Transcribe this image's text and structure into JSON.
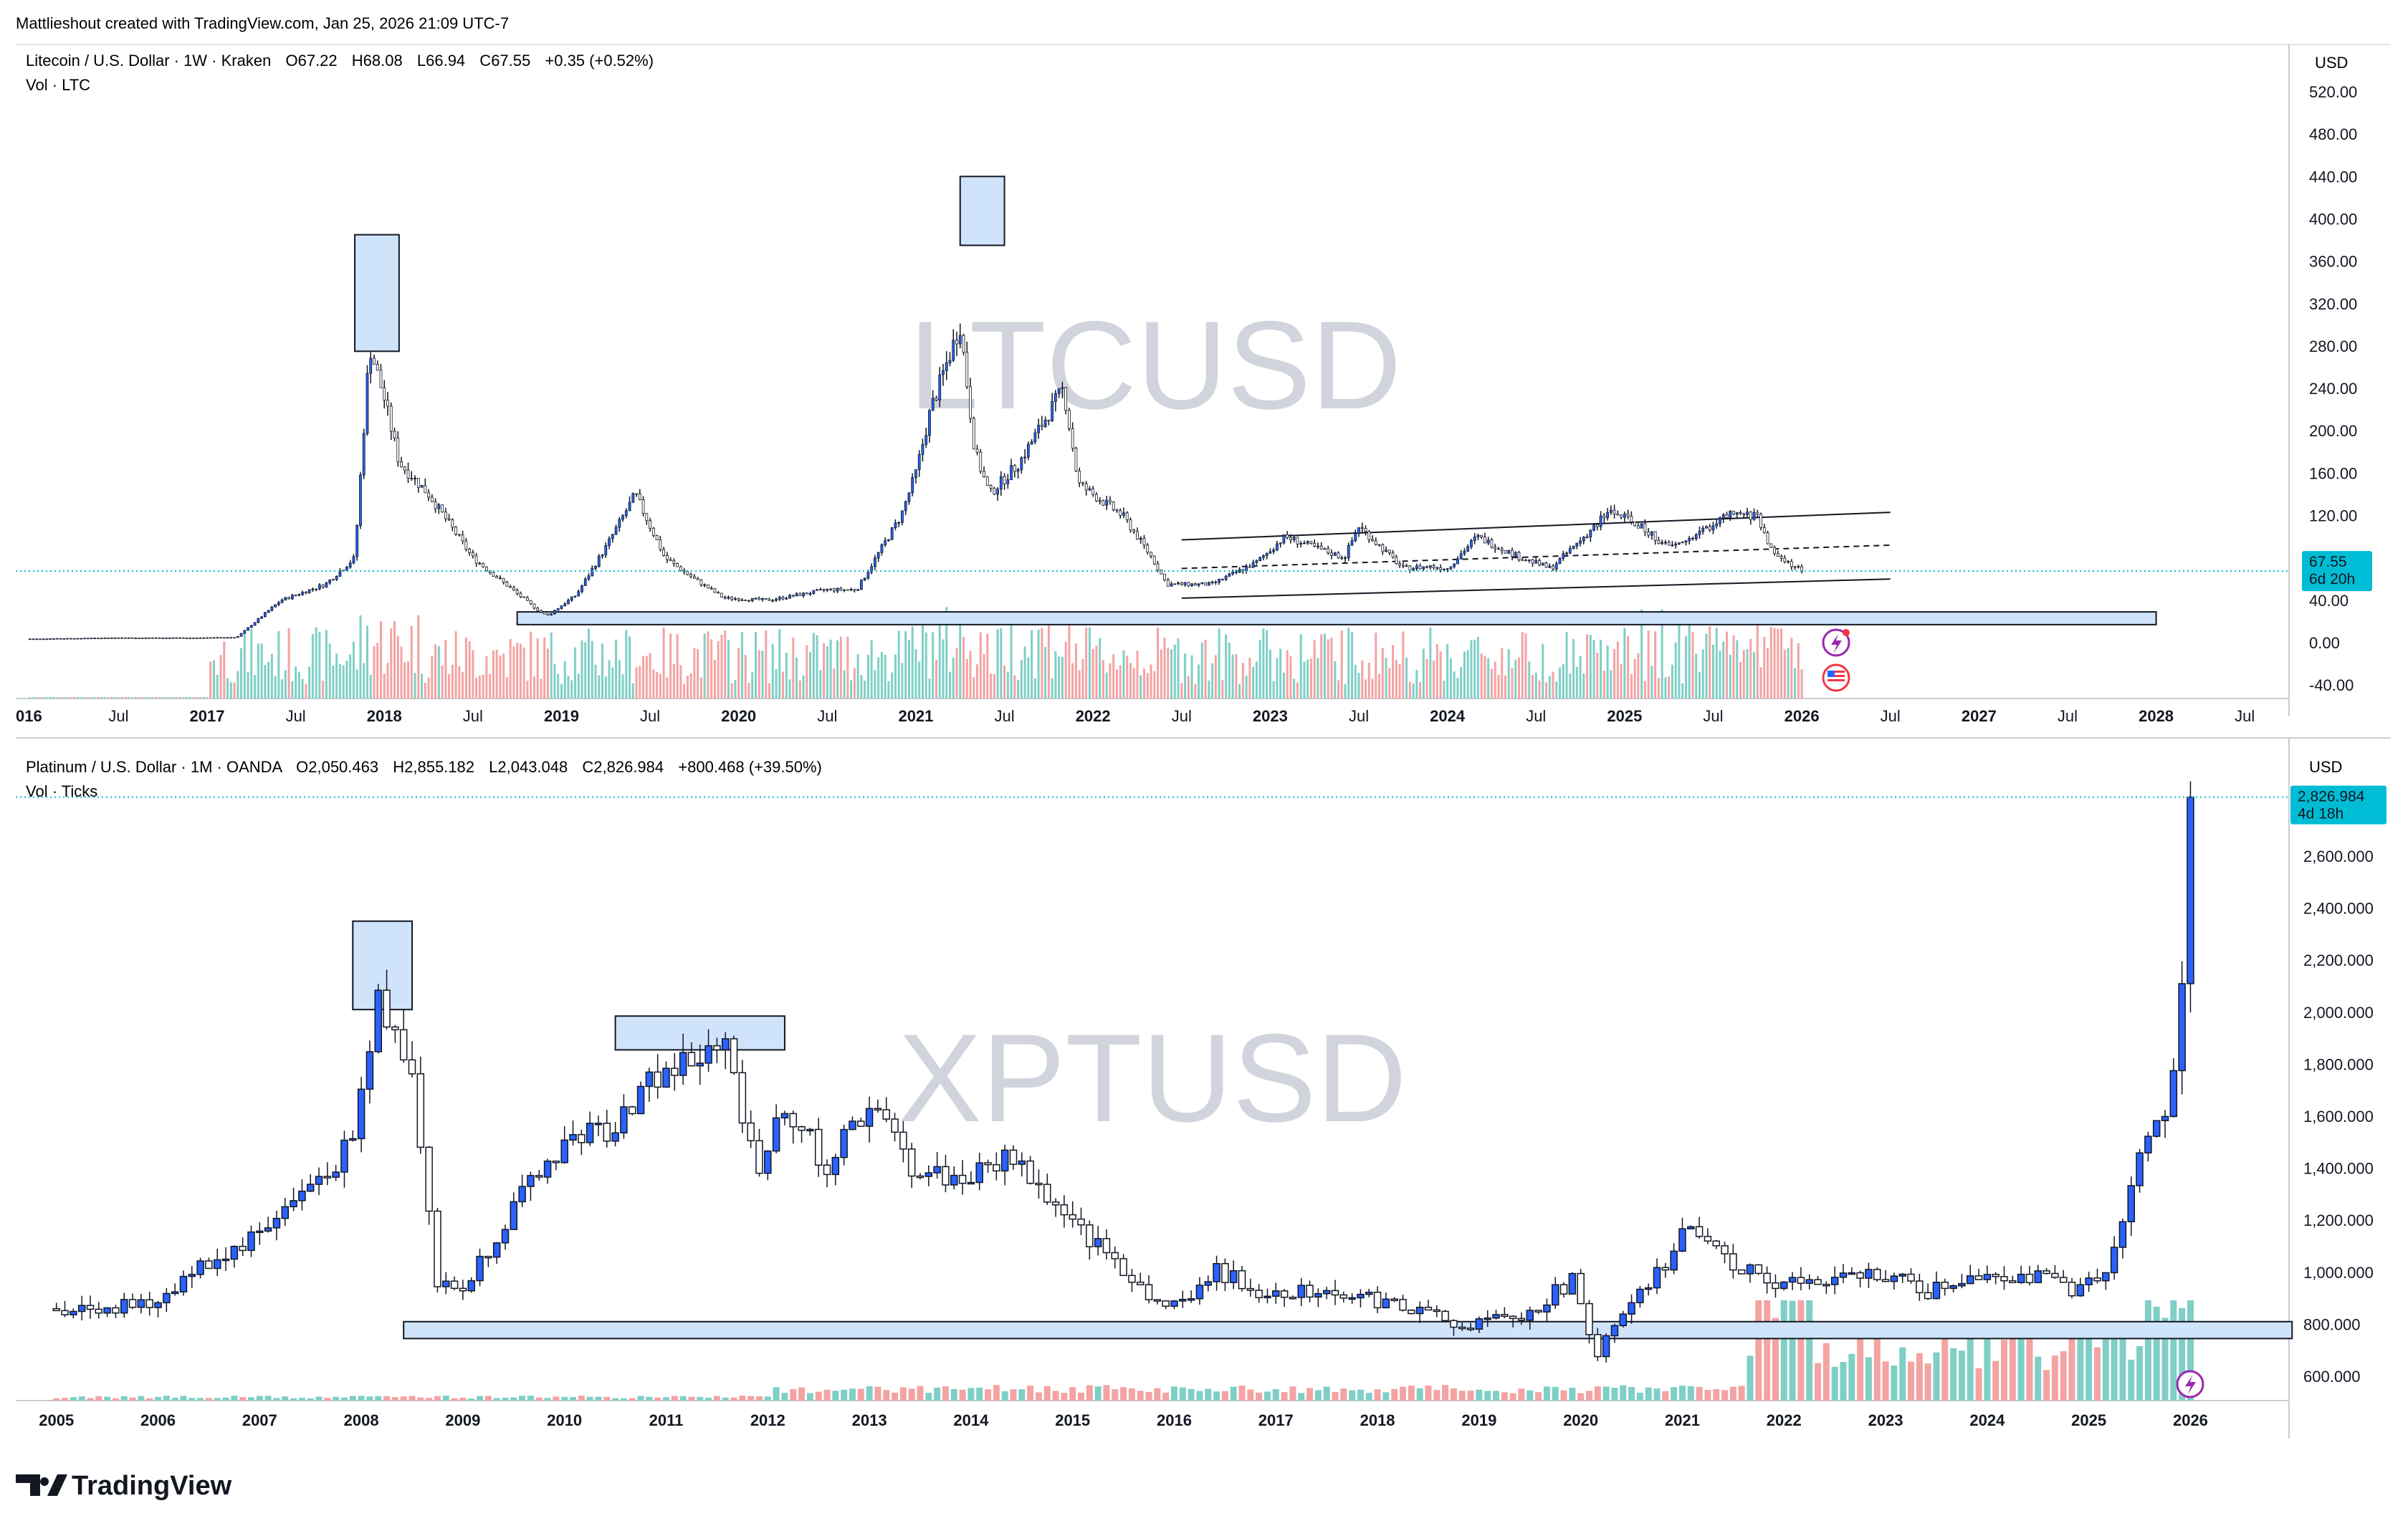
{
  "header": {
    "snapshot_text": "Mattlieshout created with TradingView.com, Jan 25, 2026 21:09 UTC-7"
  },
  "footer": {
    "logo_text": "TradingView"
  },
  "colors": {
    "up_bar": "#2962ff",
    "down_bar": "#ffffff",
    "candle_border": "#131722",
    "vol_up": "#7fcfc6",
    "vol_down": "#f4a3a3",
    "zone_fill": "#cfe3fb",
    "zone_stroke": "#131722",
    "price_tag": "#00bcd4",
    "watermark": "#d1d4dc",
    "grid_text": "#131722"
  },
  "chart_data": [
    {
      "type": "candlestick",
      "symbol_line": "Litecoin / U.S. Dollar · 1W · Kraken",
      "ohlc": {
        "o_label": "O",
        "open": "67.22",
        "h_label": "H",
        "high": "68.08",
        "l_label": "L",
        "low": "66.94",
        "c_label": "C",
        "close": "67.55",
        "change": "+0.35 (+0.52%)"
      },
      "volume_label": "Vol · LTC",
      "watermark": "LTCUSD",
      "currency": "USD",
      "y_ticks": [
        "520.00",
        "480.00",
        "440.00",
        "400.00",
        "360.00",
        "320.00",
        "280.00",
        "240.00",
        "200.00",
        "160.00",
        "120.00",
        "80.00",
        "40.00",
        "0.00",
        "-40.00"
      ],
      "y_values": [
        520,
        480,
        440,
        400,
        360,
        320,
        280,
        240,
        200,
        160,
        120,
        80,
        40,
        0,
        -40
      ],
      "x_ticks": [
        "016",
        "Jul",
        "2017",
        "Jul",
        "2018",
        "Jul",
        "2019",
        "Jul",
        "2020",
        "Jul",
        "2021",
        "Jul",
        "2022",
        "Jul",
        "2023",
        "Jul",
        "2024",
        "Jul",
        "2025",
        "Jul",
        "2026",
        "Jul",
        "2027",
        "Jul",
        "2028",
        "Jul"
      ],
      "last_price": "67.55",
      "countdown": "6d 20h",
      "series": [
        {
          "name": "LTCUSD",
          "time": [
            "2016-01",
            "2016-07",
            "2016-12",
            "2017-03",
            "2017-06",
            "2017-09",
            "2017-11",
            "2017-12",
            "2018-01",
            "2018-02",
            "2018-04",
            "2018-07",
            "2018-11",
            "2018-12",
            "2019-02",
            "2019-04",
            "2019-06",
            "2019-08",
            "2019-10",
            "2019-12",
            "2020-03",
            "2020-07",
            "2020-09",
            "2020-12",
            "2021-01",
            "2021-02",
            "2021-04",
            "2021-05",
            "2021-06",
            "2021-08",
            "2021-11",
            "2021-12",
            "2022-03",
            "2022-05",
            "2022-06",
            "2022-09",
            "2022-12",
            "2023-02",
            "2023-04",
            "2023-06",
            "2023-07",
            "2023-10",
            "2023-12",
            "2024-01",
            "2024-03",
            "2024-06",
            "2024-08",
            "2024-11",
            "2024-12",
            "2025-02",
            "2025-04",
            "2025-05",
            "2025-08",
            "2025-10",
            "2025-11",
            "2026-01"
          ],
          "close": [
            3.5,
            4.5,
            4.5,
            5,
            40,
            55,
            80,
            280,
            230,
            170,
            140,
            80,
            35,
            25,
            45,
            90,
            140,
            80,
            60,
            42,
            40,
            50,
            50,
            120,
            160,
            220,
            300,
            180,
            140,
            170,
            240,
            150,
            120,
            80,
            55,
            55,
            75,
            100,
            90,
            80,
            110,
            70,
            72,
            70,
            100,
            80,
            70,
            110,
            125,
            110,
            90,
            95,
            120,
            120,
            85,
            67.55
          ]
        },
        {
          "name": "Vol · LTC",
          "time": [
            "2017",
            "2018",
            "2019",
            "2020",
            "2021",
            "2022",
            "2023",
            "2024",
            "2025",
            "2026"
          ],
          "values": [
            null,
            null,
            null,
            null,
            null,
            null,
            null,
            null,
            null,
            null
          ]
        }
      ],
      "zones": [
        {
          "name": "top-2017",
          "x0": "2017-11",
          "x1": "2018-02",
          "y0": 275,
          "y1": 385
        },
        {
          "name": "top-2021",
          "x0": "2021-04",
          "x1": "2021-07",
          "y0": 375,
          "y1": 440
        },
        {
          "name": "support",
          "x0": "2018-10",
          "x1": "2028-01",
          "y0": 17,
          "y1": 29
        }
      ],
      "channel": {
        "upper": [
          [
            "2022-07",
            97
          ],
          [
            "2026-07",
            123
          ]
        ],
        "lower": [
          [
            "2022-07",
            42
          ],
          [
            "2026-07",
            60
          ]
        ],
        "mid_dashed": [
          [
            "2022-07",
            70
          ],
          [
            "2026-07",
            92
          ]
        ]
      }
    },
    {
      "type": "candlestick",
      "symbol_line": "Platinum / U.S. Dollar · 1M · OANDA",
      "ohlc": {
        "o_label": "O",
        "open": "2,050.463",
        "h_label": "H",
        "high": "2,855.182",
        "l_label": "L",
        "low": "2,043.048",
        "c_label": "C",
        "close": "2,826.984",
        "change": "+800.468 (+39.50%)"
      },
      "volume_label": "Vol · Ticks",
      "watermark": "XPTUSD",
      "currency": "USD",
      "y_ticks": [
        "2,600.000",
        "2,400.000",
        "2,200.000",
        "2,000.000",
        "1,800.000",
        "1,600.000",
        "1,400.000",
        "1,200.000",
        "1,000.000",
        "800.000",
        "600.000"
      ],
      "y_values": [
        2600,
        2400,
        2200,
        2000,
        1800,
        1600,
        1400,
        1200,
        1000,
        800,
        600
      ],
      "x_ticks": [
        "2005",
        "2006",
        "2007",
        "2008",
        "2009",
        "2010",
        "2011",
        "2012",
        "2013",
        "2014",
        "2015",
        "2016",
        "2017",
        "2018",
        "2019",
        "2020",
        "2021",
        "2022",
        "2023",
        "2024",
        "2025",
        "2026"
      ],
      "last_price": "2,826.984",
      "countdown": "4d 18h",
      "series": [
        {
          "name": "XPTUSD",
          "time": [
            "2005-01",
            "2005-12",
            "2006-05",
            "2006-12",
            "2007-06",
            "2007-12",
            "2008-03",
            "2008-07",
            "2008-10",
            "2009-01",
            "2009-06",
            "2010-01",
            "2010-06",
            "2010-12",
            "2011-03",
            "2011-08",
            "2011-12",
            "2012-03",
            "2012-08",
            "2013-01",
            "2013-06",
            "2013-12",
            "2014-06",
            "2014-12",
            "2015-06",
            "2015-12",
            "2016-06",
            "2016-12",
            "2017-06",
            "2017-12",
            "2018-06",
            "2018-12",
            "2019-06",
            "2019-12",
            "2020-03",
            "2020-06",
            "2020-12",
            "2021-02",
            "2021-06",
            "2021-12",
            "2022-06",
            "2022-12",
            "2023-06",
            "2023-12",
            "2024-06",
            "2024-12",
            "2025-03",
            "2025-06",
            "2025-09",
            "2025-10",
            "2025-12",
            "2026-01"
          ],
          "close": [
            860,
            870,
            1000,
            1130,
            1300,
            1500,
            2050,
            1800,
            950,
            930,
            1200,
            1500,
            1550,
            1750,
            1800,
            1850,
            1400,
            1650,
            1400,
            1650,
            1400,
            1350,
            1450,
            1200,
            1050,
            850,
            1000,
            920,
            940,
            900,
            850,
            800,
            820,
            970,
            690,
            820,
            1070,
            1200,
            1060,
            960,
            950,
            1000,
            920,
            1000,
            980,
            930,
            980,
            1350,
            1620,
            1600,
            2040,
            2826.984
          ]
        },
        {
          "name": "Vol · Ticks",
          "time": [
            "2005",
            "2010",
            "2015",
            "2020",
            "2025"
          ],
          "values": [
            null,
            null,
            null,
            null,
            null
          ]
        }
      ],
      "zones": [
        {
          "name": "top-2008",
          "x0": "2007-12",
          "x1": "2008-07",
          "y0": 2010,
          "y1": 2350
        },
        {
          "name": "top-2011",
          "x0": "2010-07",
          "x1": "2012-03",
          "y0": 1855,
          "y1": 1985
        },
        {
          "name": "support",
          "x0": "2008-06",
          "x1": "2027-01",
          "y0": 745,
          "y1": 810
        }
      ]
    }
  ]
}
